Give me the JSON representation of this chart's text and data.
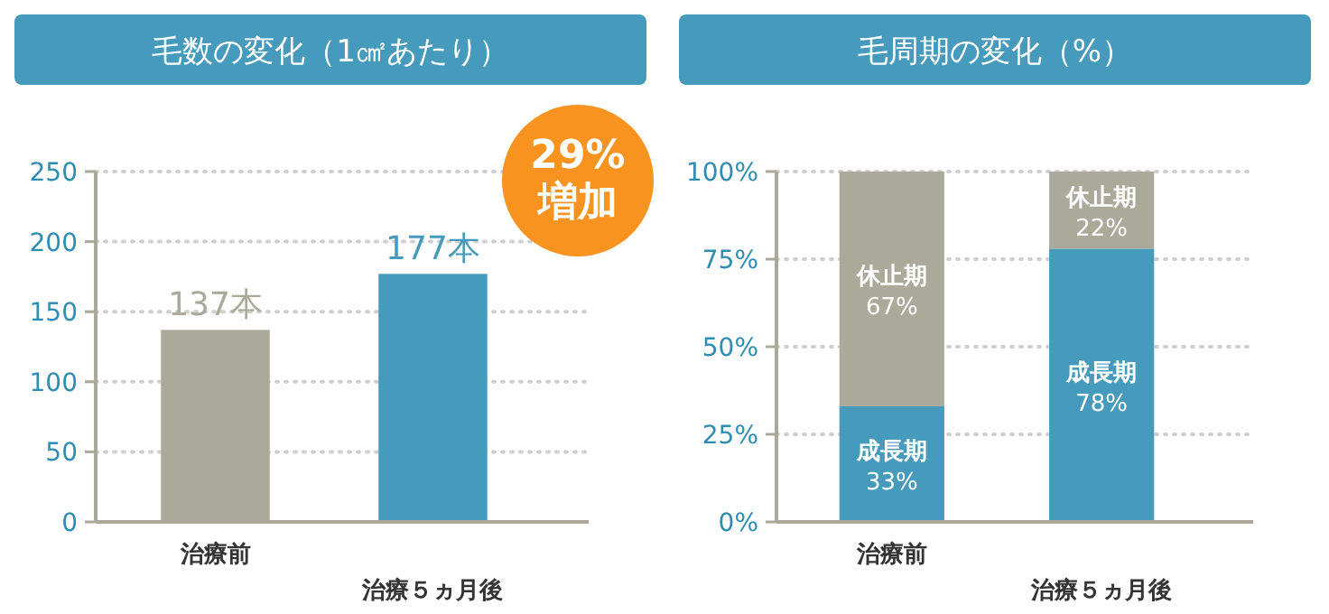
{
  "chart_data": [
    {
      "type": "bar",
      "title": "毛数の変化（1㎠あたり）",
      "categories": [
        "治療前",
        "治療５ヵ月後"
      ],
      "values": [
        137,
        177
      ],
      "colors": [
        "#aaa99a",
        "#469bbd"
      ],
      "value_labels": [
        "137本",
        "177本"
      ],
      "ylim": [
        0,
        250
      ],
      "yticks": [
        0,
        50,
        100,
        150,
        200,
        250
      ],
      "grid": "y",
      "annotations": [
        "29%\n増加"
      ]
    },
    {
      "type": "bar",
      "title": "毛周期の変化（%）",
      "categories": [
        "治療前",
        "治療５ヵ月後"
      ],
      "stacked": true,
      "series": [
        {
          "name": "成長期",
          "color": "#469bbd",
          "values": [
            33,
            78
          ],
          "value_labels": [
            "33%",
            "78%"
          ]
        },
        {
          "name": "休止期",
          "color": "#aaa99a",
          "values": [
            67,
            22
          ],
          "value_labels": [
            "67%",
            "22%"
          ]
        }
      ],
      "ylim": [
        0,
        100
      ],
      "yticks": [
        {
          "value": 0,
          "label": "0%"
        },
        {
          "value": 25,
          "label": "25%"
        },
        {
          "value": 50,
          "label": "50%"
        },
        {
          "value": 75,
          "label": "75%"
        },
        {
          "value": 100,
          "label": "100%"
        }
      ],
      "grid": "y"
    }
  ]
}
